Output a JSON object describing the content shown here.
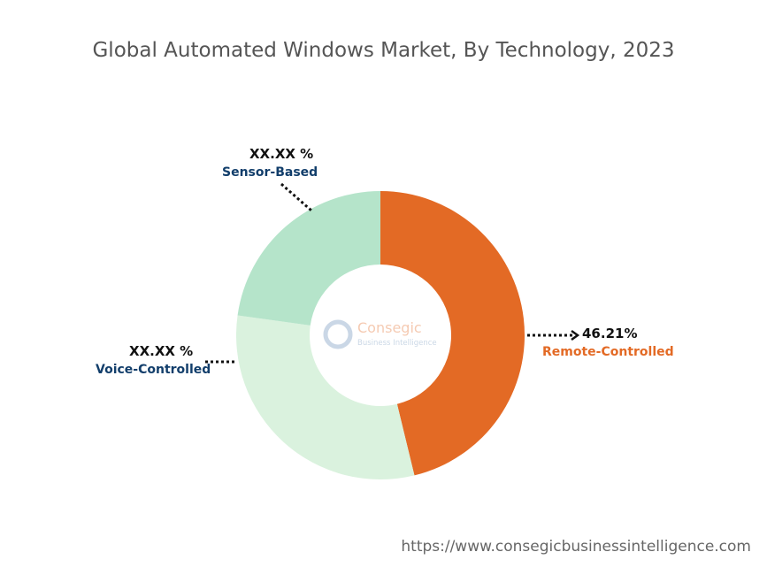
{
  "chart_data": {
    "type": "pie",
    "variant": "donut",
    "title": "Global Automated Windows Market, By Technology, 2023",
    "slices": [
      {
        "name": "Remote-Controlled",
        "value": 46.21,
        "label": "46.21%",
        "color": "#E36A25",
        "label_color": "#E36A25"
      },
      {
        "name": "Voice-Controlled",
        "value": 31.0,
        "label": "XX.XX %",
        "color": "#DAF2DE",
        "label_color": "#123E6B"
      },
      {
        "name": "Sensor-Based",
        "value": 22.79,
        "label": "XX.XX %",
        "color": "#B5E4CA",
        "label_color": "#123E6B"
      }
    ]
  },
  "watermark": {
    "brand": "Consegic",
    "tagline": "Business Intelligence"
  },
  "footer_url": "https://www.consegicbusinessintelligence.com"
}
